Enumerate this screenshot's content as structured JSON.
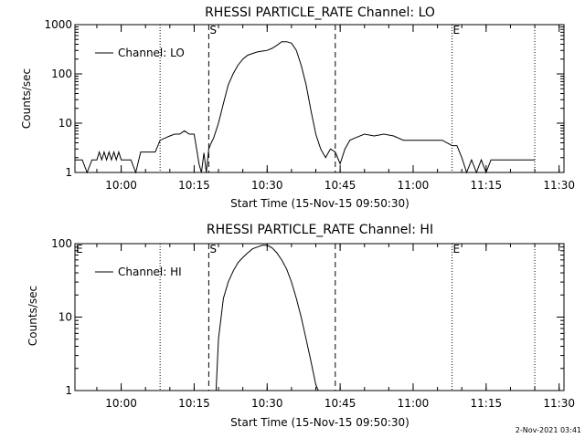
{
  "chart_data": [
    {
      "type": "line",
      "title": "RHESSI PARTICLE_RATE Channel: LO",
      "xlabel": "Start Time (15-Nov-15 09:50:30)",
      "ylabel": "Counts/sec",
      "y_scale": "log",
      "xlim": [
        "09:50:30",
        "11:31:00"
      ],
      "ylim": [
        1,
        1000
      ],
      "x_ticks": [
        "10:00",
        "10:15",
        "10:30",
        "10:45",
        "11:00",
        "11:15",
        "11:30"
      ],
      "y_ticks": [
        "1",
        "10",
        "100",
        "1000"
      ],
      "legend": {
        "position": "top-left",
        "entries": [
          "Channel: LO"
        ]
      },
      "markers": [
        {
          "time": "10:08:00",
          "style": "dotted",
          "label": ""
        },
        {
          "time": "10:18:00",
          "style": "dashed",
          "label": "S"
        },
        {
          "time": "10:44:00",
          "style": "dashed",
          "label": ""
        },
        {
          "time": "11:08:00",
          "style": "dotted",
          "label": "E"
        },
        {
          "time": "11:25:00",
          "style": "dotted",
          "label": ""
        }
      ],
      "series": [
        {
          "name": "Channel: LO",
          "x": [
            "09:50:30",
            "09:52:00",
            "09:53:00",
            "09:54:00",
            "09:55:00",
            "09:55:30",
            "09:56:00",
            "09:56:30",
            "09:57:00",
            "09:57:30",
            "09:58:00",
            "09:58:30",
            "09:59:00",
            "09:59:30",
            "10:00:00",
            "10:01:00",
            "10:02:00",
            "10:03:00",
            "10:04:00",
            "10:05:00",
            "10:06:00",
            "10:07:00",
            "10:08:00",
            "10:09:00",
            "10:10:00",
            "10:11:00",
            "10:12:00",
            "10:13:00",
            "10:14:00",
            "10:15:00",
            "10:15:30",
            "10:16:00",
            "10:16:30",
            "10:17:00",
            "10:17:30",
            "10:18:00",
            "10:18:30",
            "10:19:00",
            "10:20:00",
            "10:21:00",
            "10:22:00",
            "10:23:00",
            "10:24:00",
            "10:25:00",
            "10:26:00",
            "10:27:00",
            "10:28:00",
            "10:29:00",
            "10:30:00",
            "10:31:00",
            "10:32:00",
            "10:33:00",
            "10:34:00",
            "10:35:00",
            "10:36:00",
            "10:37:00",
            "10:38:00",
            "10:39:00",
            "10:40:00",
            "10:41:00",
            "10:42:00",
            "10:43:00",
            "10:44:00",
            "10:45:00",
            "10:46:00",
            "10:47:00",
            "10:48:00",
            "10:50:00",
            "10:52:00",
            "10:54:00",
            "10:56:00",
            "10:58:00",
            "11:00:00",
            "11:02:00",
            "11:04:00",
            "11:06:00",
            "11:08:00",
            "11:09:00",
            "11:10:00",
            "11:11:00",
            "11:12:00",
            "11:13:00",
            "11:14:00",
            "11:15:00",
            "11:16:00",
            "11:17:00",
            "11:18:00",
            "11:20:00",
            "11:22:00",
            "11:24:00",
            "11:25:00"
          ],
          "values": [
            1.8,
            1.8,
            1,
            1.8,
            1.8,
            2.6,
            1.8,
            2.6,
            1.8,
            2.6,
            1.8,
            2.6,
            1.8,
            2.6,
            1.8,
            1.8,
            1.8,
            1,
            2.6,
            2.6,
            2.6,
            2.6,
            4.5,
            5,
            5.5,
            6,
            6,
            7,
            6,
            6,
            3,
            1.5,
            1,
            2.5,
            1,
            3,
            4,
            5,
            10,
            25,
            60,
            100,
            150,
            200,
            240,
            260,
            280,
            290,
            300,
            330,
            380,
            450,
            450,
            420,
            300,
            150,
            60,
            18,
            6,
            3,
            2,
            3,
            2.6,
            1.5,
            3,
            4.5,
            5,
            6,
            5.5,
            6,
            5.5,
            4.5,
            4.5,
            4.5,
            4.5,
            4.5,
            3.5,
            3.5,
            2,
            1,
            1.8,
            1,
            1.8,
            1,
            1.8,
            1.8,
            1.8,
            1.8,
            1.8,
            1.8,
            1.8
          ]
        }
      ]
    },
    {
      "type": "line",
      "title": "RHESSI PARTICLE_RATE Channel: HI",
      "xlabel": "Start Time (15-Nov-15 09:50:30)",
      "ylabel": "Counts/sec",
      "y_scale": "log",
      "xlim": [
        "09:50:30",
        "11:31:00"
      ],
      "ylim": [
        1,
        100
      ],
      "x_ticks": [
        "10:00",
        "10:15",
        "10:30",
        "10:45",
        "11:00",
        "11:15",
        "11:30"
      ],
      "y_ticks": [
        "1",
        "10",
        "100"
      ],
      "legend": {
        "position": "top-left",
        "entries": [
          "Channel: HI"
        ]
      },
      "markers": [
        {
          "time": "09:50:30",
          "style": "none",
          "label": "E"
        },
        {
          "time": "10:08:00",
          "style": "dotted",
          "label": ""
        },
        {
          "time": "10:18:00",
          "style": "dashed",
          "label": "S"
        },
        {
          "time": "10:44:00",
          "style": "dashed",
          "label": ""
        },
        {
          "time": "11:08:00",
          "style": "dotted",
          "label": "E"
        },
        {
          "time": "11:25:00",
          "style": "dotted",
          "label": ""
        }
      ],
      "series": [
        {
          "name": "Channel: HI",
          "x": [
            "10:19:30",
            "10:20:00",
            "10:21:00",
            "10:22:00",
            "10:23:00",
            "10:24:00",
            "10:25:00",
            "10:26:00",
            "10:27:00",
            "10:28:00",
            "10:29:00",
            "10:30:00",
            "10:31:00",
            "10:32:00",
            "10:33:00",
            "10:34:00",
            "10:35:00",
            "10:36:00",
            "10:37:00",
            "10:38:00",
            "10:39:00",
            "10:40:00",
            "10:40:30"
          ],
          "values": [
            1,
            5,
            18,
            30,
            42,
            55,
            65,
            75,
            85,
            90,
            95,
            95,
            88,
            75,
            60,
            45,
            30,
            18,
            10,
            5,
            2.5,
            1.2,
            1
          ]
        }
      ]
    }
  ],
  "timestamp": "2-Nov-2021 03:41"
}
